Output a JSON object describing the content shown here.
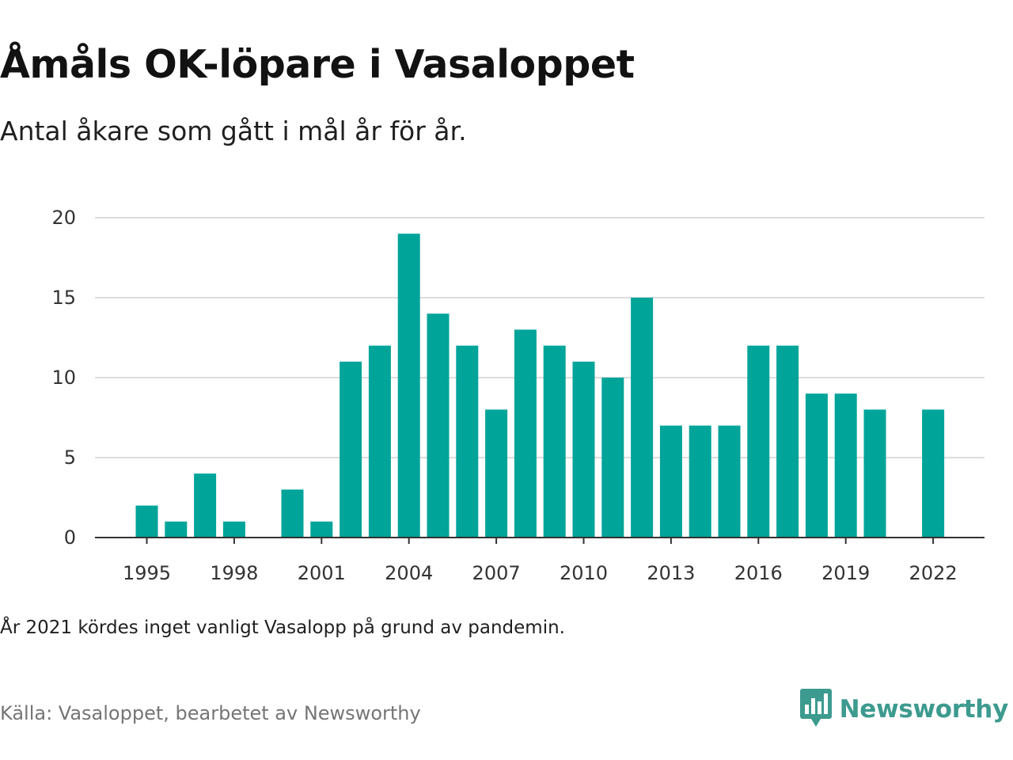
{
  "title": "Åmåls OK-löpare i Vasaloppet",
  "subtitle": "Antal åkare som gått i mål år för år.",
  "note": "År 2021 kördes inget vanligt Vasalopp på grund av pandemin.",
  "source": "Källa: Vasaloppet, bearbetet av Newsworthy",
  "brand": {
    "name": "Newsworthy",
    "icon": "newsworthy-logo-icon",
    "color": "#3d9a8f"
  },
  "colors": {
    "bar": "#00a499",
    "grid": "#dddddd",
    "axis": "#333333"
  },
  "chart_data": {
    "type": "bar",
    "categories": [
      "1995",
      "1996",
      "1997",
      "1998",
      "1999",
      "2000",
      "2001",
      "2002",
      "2003",
      "2004",
      "2005",
      "2006",
      "2007",
      "2008",
      "2009",
      "2010",
      "2011",
      "2012",
      "2013",
      "2014",
      "2015",
      "2016",
      "2017",
      "2018",
      "2019",
      "2020",
      "2021",
      "2022"
    ],
    "values": [
      2,
      1,
      4,
      1,
      0,
      3,
      1,
      11,
      12,
      19,
      14,
      12,
      8,
      13,
      12,
      11,
      10,
      15,
      7,
      7,
      7,
      12,
      12,
      9,
      9,
      8,
      null,
      8
    ],
    "x_tick_labels": [
      "1995",
      "1998",
      "2001",
      "2004",
      "2007",
      "2010",
      "2013",
      "2016",
      "2019",
      "2022"
    ],
    "y_tick_labels": [
      "0",
      "5",
      "10",
      "15",
      "20"
    ],
    "ylim": [
      0,
      20
    ],
    "grid": true,
    "legend": "none"
  }
}
